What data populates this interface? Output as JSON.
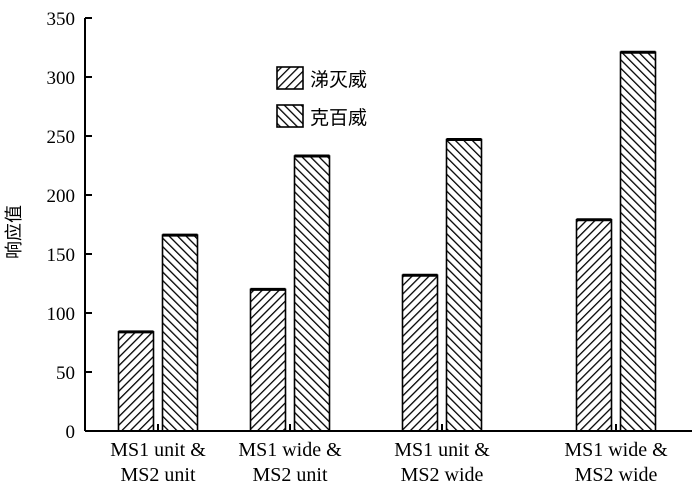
{
  "chart_data": {
    "type": "bar",
    "ylabel": "响应值",
    "ylim": [
      0,
      350
    ],
    "yticks": [
      0,
      50,
      100,
      150,
      200,
      250,
      300,
      350
    ],
    "categories": [
      [
        "MS1 unit &",
        "MS2 unit"
      ],
      [
        "MS1 wide &",
        "MS2 unit"
      ],
      [
        "MS1 unit &",
        "MS2 wide"
      ],
      [
        "MS1 wide &",
        "MS2 wide"
      ]
    ],
    "series": [
      {
        "name": "涕灭威",
        "values": [
          84,
          120,
          132,
          179
        ],
        "pattern": "hatch-forward"
      },
      {
        "name": "克百威",
        "values": [
          166,
          233,
          247,
          321
        ],
        "pattern": "hatch-backward"
      }
    ],
    "legend_position": "top-left inside plot",
    "grid": false
  }
}
